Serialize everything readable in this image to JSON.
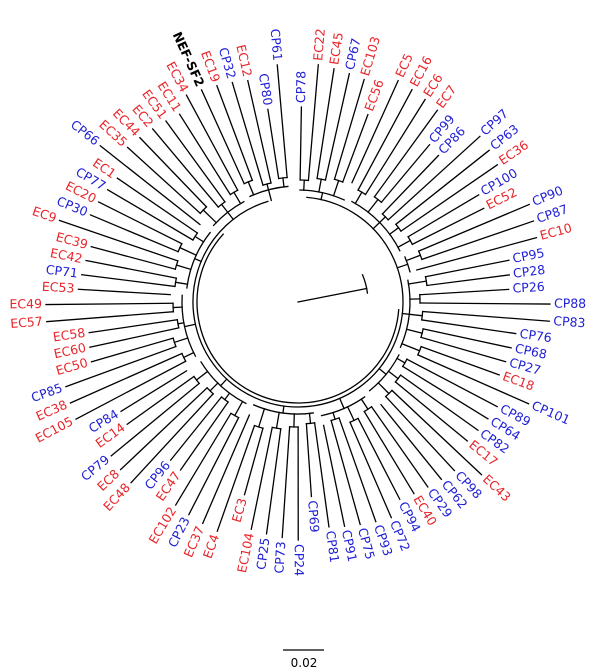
{
  "colors": {
    "EC": "#e8262b",
    "CP": "#1f1fd6",
    "reference": "#000000",
    "branch": "#000000"
  },
  "tree": {
    "tips": [
      {
        "label": "CP78",
        "group": "CP"
      },
      {
        "label": "EC22",
        "group": "EC"
      },
      {
        "label": "EC45",
        "group": "EC"
      },
      {
        "label": "CP67",
        "group": "CP"
      },
      {
        "label": "EC103",
        "group": "EC"
      },
      {
        "label": "EC56",
        "group": "EC"
      },
      {
        "label": "EC5",
        "group": "EC"
      },
      {
        "label": "EC16",
        "group": "EC"
      },
      {
        "label": "EC6",
        "group": "EC"
      },
      {
        "label": "EC7",
        "group": "EC"
      },
      {
        "label": "CP99",
        "group": "CP"
      },
      {
        "label": "CP86",
        "group": "CP"
      },
      {
        "label": "CP97",
        "group": "CP"
      },
      {
        "label": "CP63",
        "group": "CP"
      },
      {
        "label": "EC36",
        "group": "EC"
      },
      {
        "label": "CP100",
        "group": "CP"
      },
      {
        "label": "EC52",
        "group": "EC"
      },
      {
        "label": "CP90",
        "group": "CP"
      },
      {
        "label": "CP87",
        "group": "CP"
      },
      {
        "label": "EC10",
        "group": "EC"
      },
      {
        "label": "CP95",
        "group": "CP"
      },
      {
        "label": "CP28",
        "group": "CP"
      },
      {
        "label": "CP26",
        "group": "CP"
      },
      {
        "label": "CP88",
        "group": "CP"
      },
      {
        "label": "CP83",
        "group": "CP"
      },
      {
        "label": "CP76",
        "group": "CP"
      },
      {
        "label": "CP68",
        "group": "CP"
      },
      {
        "label": "CP27",
        "group": "CP"
      },
      {
        "label": "EC18",
        "group": "EC"
      },
      {
        "label": "CP101",
        "group": "CP"
      },
      {
        "label": "CP89",
        "group": "CP"
      },
      {
        "label": "CP64",
        "group": "CP"
      },
      {
        "label": "CP82",
        "group": "CP"
      },
      {
        "label": "EC17",
        "group": "EC"
      },
      {
        "label": "EC43",
        "group": "EC"
      },
      {
        "label": "CP98",
        "group": "CP"
      },
      {
        "label": "CP62",
        "group": "CP"
      },
      {
        "label": "CP29",
        "group": "CP"
      },
      {
        "label": "EC40",
        "group": "EC"
      },
      {
        "label": "CP94",
        "group": "CP"
      },
      {
        "label": "CP72",
        "group": "CP"
      },
      {
        "label": "CP93",
        "group": "CP"
      },
      {
        "label": "CP75",
        "group": "CP"
      },
      {
        "label": "CP91",
        "group": "CP"
      },
      {
        "label": "CP81",
        "group": "CP"
      },
      {
        "label": "CP69",
        "group": "CP"
      },
      {
        "label": "CP24",
        "group": "CP"
      },
      {
        "label": "CP73",
        "group": "CP"
      },
      {
        "label": "CP25",
        "group": "CP"
      },
      {
        "label": "EC104",
        "group": "EC"
      },
      {
        "label": "EC3",
        "group": "EC"
      },
      {
        "label": "EC4",
        "group": "EC"
      },
      {
        "label": "EC37",
        "group": "EC"
      },
      {
        "label": "CP23",
        "group": "CP"
      },
      {
        "label": "EC102",
        "group": "EC"
      },
      {
        "label": "EC47",
        "group": "EC"
      },
      {
        "label": "CP96",
        "group": "CP"
      },
      {
        "label": "EC48",
        "group": "EC"
      },
      {
        "label": "EC8",
        "group": "EC"
      },
      {
        "label": "CP79",
        "group": "CP"
      },
      {
        "label": "EC14",
        "group": "EC"
      },
      {
        "label": "CP84",
        "group": "CP"
      },
      {
        "label": "EC105",
        "group": "EC"
      },
      {
        "label": "EC38",
        "group": "EC"
      },
      {
        "label": "CP85",
        "group": "CP"
      },
      {
        "label": "EC50",
        "group": "EC"
      },
      {
        "label": "EC60",
        "group": "EC"
      },
      {
        "label": "EC58",
        "group": "EC"
      },
      {
        "label": "EC57",
        "group": "EC"
      },
      {
        "label": "EC49",
        "group": "EC"
      },
      {
        "label": "EC53",
        "group": "EC"
      },
      {
        "label": "CP71",
        "group": "CP"
      },
      {
        "label": "EC42",
        "group": "EC"
      },
      {
        "label": "EC39",
        "group": "EC"
      },
      {
        "label": "EC9",
        "group": "EC"
      },
      {
        "label": "CP30",
        "group": "CP"
      },
      {
        "label": "EC20",
        "group": "EC"
      },
      {
        "label": "CP77",
        "group": "CP"
      },
      {
        "label": "EC1",
        "group": "EC"
      },
      {
        "label": "CP66",
        "group": "CP"
      },
      {
        "label": "EC35",
        "group": "EC"
      },
      {
        "label": "EC44",
        "group": "EC"
      },
      {
        "label": "EC2",
        "group": "EC"
      },
      {
        "label": "EC51",
        "group": "EC"
      },
      {
        "label": "EC11",
        "group": "EC"
      },
      {
        "label": "EC34",
        "group": "EC"
      },
      {
        "label": "NEF-SF2",
        "group": "reference"
      },
      {
        "label": "EC19",
        "group": "EC"
      },
      {
        "label": "CP32",
        "group": "CP"
      },
      {
        "label": "EC12",
        "group": "EC"
      },
      {
        "label": "CP80",
        "group": "CP"
      },
      {
        "label": "CP61",
        "group": "CP"
      }
    ]
  },
  "scale_bar": {
    "label": "0.02"
  }
}
